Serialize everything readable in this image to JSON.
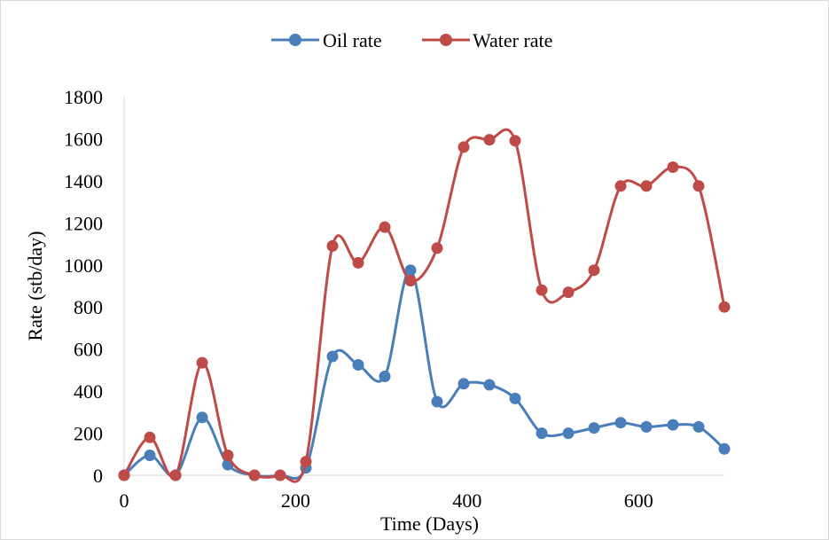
{
  "chart_data": {
    "type": "line",
    "xlabel": "Time (Days)",
    "ylabel": "Rate (stb/day)",
    "xlim": [
      0,
      700
    ],
    "ylim": [
      0,
      1800
    ],
    "xticks": [
      0,
      200,
      400,
      600
    ],
    "yticks": [
      0,
      200,
      400,
      600,
      800,
      1000,
      1200,
      1400,
      1600,
      1800
    ],
    "grid": false,
    "legend_position": "top",
    "x": [
      0,
      30,
      60,
      91,
      121,
      152,
      182,
      212,
      243,
      273,
      304,
      334,
      365,
      396,
      426,
      456,
      487,
      518,
      548,
      579,
      609,
      640,
      670,
      700
    ],
    "series": [
      {
        "name": "Oil rate",
        "color": "#4a7ebb",
        "values": [
          0,
          95,
          0,
          275,
          50,
          0,
          0,
          35,
          565,
          525,
          470,
          975,
          350,
          435,
          430,
          365,
          200,
          200,
          225,
          250,
          230,
          240,
          230,
          125
        ]
      },
      {
        "name": "Water rate",
        "color": "#be4b48",
        "values": [
          0,
          180,
          0,
          535,
          95,
          0,
          0,
          65,
          1090,
          1010,
          1180,
          925,
          1080,
          1560,
          1595,
          1590,
          880,
          870,
          975,
          1375,
          1375,
          1465,
          1375,
          800
        ]
      }
    ]
  }
}
